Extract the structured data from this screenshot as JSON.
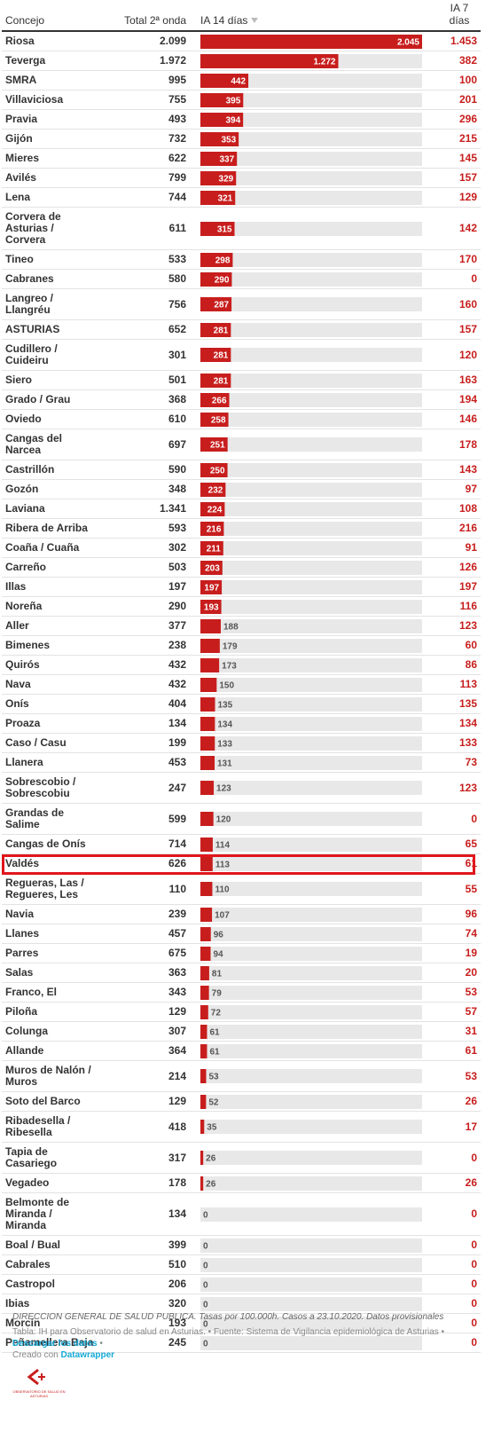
{
  "table": {
    "header": {
      "name": "Concejo",
      "total": "Total 2ª onda",
      "ia14": "IA 14 días",
      "ia7": "IA 7 días"
    },
    "bar_color": "#c71e1d",
    "highlighted_row": 38,
    "rows": [
      {
        "name": "Riosa",
        "total": "2.099",
        "ia14": {
          "value": 2045,
          "label": "2.045"
        },
        "ia7": "1.453"
      },
      {
        "name": "Teverga",
        "total": "1.972",
        "ia14": {
          "value": 1272,
          "label": "1.272"
        },
        "ia7": "382"
      },
      {
        "name": "SMRA",
        "total": "995",
        "ia14": 442,
        "ia7": "100"
      },
      {
        "name": "Villaviciosa",
        "total": "755",
        "ia14": 395,
        "ia7": "201"
      },
      {
        "name": "Pravia",
        "total": "493",
        "ia14": 394,
        "ia7": "296"
      },
      {
        "name": "Gijón",
        "total": "732",
        "ia14": 353,
        "ia7": "215"
      },
      {
        "name": "Mieres",
        "total": "622",
        "ia14": 337,
        "ia7": "145"
      },
      {
        "name": "Avilés",
        "total": "799",
        "ia14": 329,
        "ia7": "157"
      },
      {
        "name": "Lena",
        "total": "744",
        "ia14": 321,
        "ia7": "129"
      },
      {
        "name": "Corvera de Asturias / Corvera",
        "total": "611",
        "ia14": 315,
        "ia7": "142"
      },
      {
        "name": "Tineo",
        "total": "533",
        "ia14": 298,
        "ia7": "170"
      },
      {
        "name": "Cabranes",
        "total": "580",
        "ia14": 290,
        "ia7": "0"
      },
      {
        "name": "Langreo / Llangréu",
        "total": "756",
        "ia14": 287,
        "ia7": "160"
      },
      {
        "name": "ASTURIAS",
        "total": "652",
        "ia14": 281,
        "ia7": "157"
      },
      {
        "name": "Cudillero / Cuideiru",
        "total": "301",
        "ia14": 281,
        "ia7": "120"
      },
      {
        "name": "Siero",
        "total": "501",
        "ia14": 281,
        "ia7": "163"
      },
      {
        "name": "Grado / Grau",
        "total": "368",
        "ia14": 266,
        "ia7": "194"
      },
      {
        "name": "Oviedo",
        "total": "610",
        "ia14": 258,
        "ia7": "146"
      },
      {
        "name": "Cangas del Narcea",
        "total": "697",
        "ia14": 251,
        "ia7": "178"
      },
      {
        "name": "Castrillón",
        "total": "590",
        "ia14": 250,
        "ia7": "143"
      },
      {
        "name": "Gozón",
        "total": "348",
        "ia14": 232,
        "ia7": "97"
      },
      {
        "name": "Laviana",
        "total": "1.341",
        "ia14": 224,
        "ia7": "108"
      },
      {
        "name": "Ribera de Arriba",
        "total": "593",
        "ia14": 216,
        "ia7": "216"
      },
      {
        "name": "Coaña / Cuaña",
        "total": "302",
        "ia14": 211,
        "ia7": "91"
      },
      {
        "name": "Carreño",
        "total": "503",
        "ia14": 203,
        "ia7": "126"
      },
      {
        "name": "Illas",
        "total": "197",
        "ia14": 197,
        "ia7": "197"
      },
      {
        "name": "Noreña",
        "total": "290",
        "ia14": 193,
        "ia7": "116"
      },
      {
        "name": "Aller",
        "total": "377",
        "ia14": 188,
        "ia7": "123"
      },
      {
        "name": "Bimenes",
        "total": "238",
        "ia14": 179,
        "ia7": "60"
      },
      {
        "name": "Quirós",
        "total": "432",
        "ia14": 173,
        "ia7": "86"
      },
      {
        "name": "Nava",
        "total": "432",
        "ia14": 150,
        "ia7": "113"
      },
      {
        "name": "Onís",
        "total": "404",
        "ia14": 135,
        "ia7": "135"
      },
      {
        "name": "Proaza",
        "total": "134",
        "ia14": 134,
        "ia7": "134"
      },
      {
        "name": "Caso / Casu",
        "total": "199",
        "ia14": 133,
        "ia7": "133"
      },
      {
        "name": "Llanera",
        "total": "453",
        "ia14": 131,
        "ia7": "73"
      },
      {
        "name": "Sobrescobio / Sobrescobiu",
        "total": "247",
        "ia14": 123,
        "ia7": "123"
      },
      {
        "name": "Grandas de Salime",
        "total": "599",
        "ia14": 120,
        "ia7": "0"
      },
      {
        "name": "Cangas de Onís",
        "total": "714",
        "ia14": 114,
        "ia7": "65"
      },
      {
        "name": "Valdés",
        "total": "626",
        "ia14": 113,
        "ia7": "61"
      },
      {
        "name": "Regueras, Las / Regueres, Les",
        "total": "110",
        "ia14": 110,
        "ia7": "55"
      },
      {
        "name": "Navia",
        "total": "239",
        "ia14": 107,
        "ia7": "96"
      },
      {
        "name": "Llanes",
        "total": "457",
        "ia14": 96,
        "ia7": "74"
      },
      {
        "name": "Parres",
        "total": "675",
        "ia14": 94,
        "ia7": "19"
      },
      {
        "name": "Salas",
        "total": "363",
        "ia14": 81,
        "ia7": "20"
      },
      {
        "name": "Franco, El",
        "total": "343",
        "ia14": 79,
        "ia7": "53"
      },
      {
        "name": "Piloña",
        "total": "129",
        "ia14": 72,
        "ia7": "57"
      },
      {
        "name": "Colunga",
        "total": "307",
        "ia14": 61,
        "ia7": "31"
      },
      {
        "name": "Allande",
        "total": "364",
        "ia14": 61,
        "ia7": "61"
      },
      {
        "name": "Muros de Nalón / Muros",
        "total": "214",
        "ia14": 53,
        "ia7": "53"
      },
      {
        "name": "Soto del Barco",
        "total": "129",
        "ia14": 52,
        "ia7": "26"
      },
      {
        "name": "Ribadesella / Ribesella",
        "total": "418",
        "ia14": 35,
        "ia7": "17"
      },
      {
        "name": "Tapia de Casariego",
        "total": "317",
        "ia14": 26,
        "ia7": "0"
      },
      {
        "name": "Vegadeo",
        "total": "178",
        "ia14": 26,
        "ia7": "26"
      },
      {
        "name": "Belmonte de Miranda / Miranda",
        "total": "134",
        "ia14": 0,
        "ia7": "0"
      },
      {
        "name": "Boal / Bual",
        "total": "399",
        "ia14": 0,
        "ia7": "0"
      },
      {
        "name": "Cabrales",
        "total": "510",
        "ia14": 0,
        "ia7": "0"
      },
      {
        "name": "Castropol",
        "total": "206",
        "ia14": 0,
        "ia7": "0"
      },
      {
        "name": "Ibias",
        "total": "320",
        "ia14": 0,
        "ia7": "0"
      },
      {
        "name": "Morcín",
        "total": "193",
        "ia14": 0,
        "ia7": "0"
      },
      {
        "name": "Peñamellera Baja",
        "total": "245",
        "ia14": 0,
        "ia7": "0"
      }
    ]
  },
  "footer": {
    "notes": "DIRECCION GENERAL DE SALUD PUBLICA. Tasas por 100.000h. Casos a 23.10.2020. Datos provisionales",
    "credit": "Tabla: IH para Observatorio de salud en Asturias. • Fuente: Sistema de Vigilancia epidemiológica de Asturias •",
    "download": "Descargar los datos",
    "separator": "•",
    "created": "Creado con",
    "datawrapper": "Datawrapper",
    "logo_text": "OBSERVATORIO DE SALUD EN ASTURIAS"
  }
}
